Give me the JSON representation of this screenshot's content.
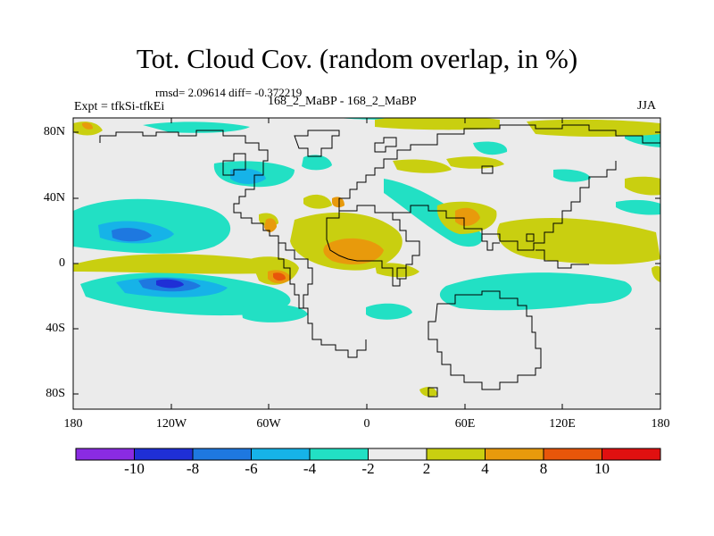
{
  "title": "Tot. Cloud Cov. (random overlap, in %)",
  "stats_text": "rmsd= 2.09614 diff= -0.372219",
  "expt_text": "Expt = tfkSi-tfkEi",
  "comparison_text": "168_2_MaBP - 168_2_MaBP",
  "season": "JJA",
  "lat_labels": [
    "80N",
    "40N",
    "0",
    "40S",
    "80S"
  ],
  "lon_labels": [
    "180",
    "120W",
    "60W",
    "0",
    "60E",
    "120E",
    "180"
  ],
  "colorbar": {
    "colors": [
      "#8a2be2",
      "#1f2fd6",
      "#1e78e0",
      "#16b3e8",
      "#22e0c4",
      "#ebebeb",
      "#c9cf10",
      "#e89a0c",
      "#e8560a",
      "#e01010"
    ],
    "labels": [
      "-10",
      "-8",
      "-6",
      "-4",
      "-2",
      "2",
      "4",
      "8",
      "10"
    ]
  },
  "colors": {
    "background_field": "#ebebeb",
    "coast": "#000000"
  }
}
